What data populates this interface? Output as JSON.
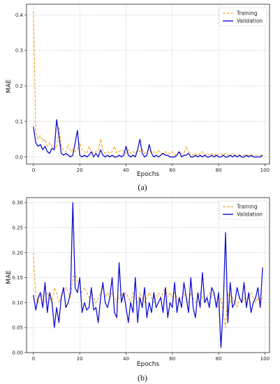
{
  "chart_data": [
    {
      "type": "line",
      "caption": "(a)",
      "xlabel": "Epochs",
      "ylabel": "MAE",
      "xlim": [
        -3,
        102
      ],
      "ylim": [
        -0.02,
        0.43
      ],
      "xticks": [
        0,
        20,
        40,
        60,
        80,
        100
      ],
      "yticks": [
        0.0,
        0.1,
        0.2,
        0.3,
        0.4
      ],
      "ytick_labels": [
        "0.0",
        "0.1",
        "0.2",
        "0.3",
        "0.4"
      ],
      "grid": true,
      "legend": "top-right",
      "x": [
        0,
        1,
        2,
        3,
        4,
        5,
        6,
        7,
        8,
        9,
        10,
        11,
        12,
        13,
        14,
        15,
        16,
        17,
        18,
        19,
        20,
        21,
        22,
        23,
        24,
        25,
        26,
        27,
        28,
        29,
        30,
        31,
        32,
        33,
        34,
        35,
        36,
        37,
        38,
        39,
        40,
        41,
        42,
        43,
        44,
        45,
        46,
        47,
        48,
        49,
        50,
        51,
        52,
        53,
        54,
        55,
        56,
        57,
        58,
        59,
        60,
        61,
        62,
        63,
        64,
        65,
        66,
        67,
        68,
        69,
        70,
        71,
        72,
        73,
        74,
        75,
        76,
        77,
        78,
        79,
        80,
        81,
        82,
        83,
        84,
        85,
        86,
        87,
        88,
        89,
        90,
        91,
        92,
        93,
        94,
        95,
        96,
        97,
        98,
        99
      ],
      "series": [
        {
          "name": "Training",
          "color": "#f5a623",
          "dash": "dashed",
          "values": [
            0.41,
            0.07,
            0.05,
            0.06,
            0.045,
            0.05,
            0.03,
            0.04,
            0.03,
            0.03,
            0.025,
            0.085,
            0.03,
            0.02,
            0.015,
            0.035,
            0.015,
            0.02,
            0.015,
            0.02,
            0.04,
            0.02,
            0.015,
            0.01,
            0.03,
            0.015,
            0.01,
            0.015,
            0.02,
            0.05,
            0.02,
            0.01,
            0.015,
            0.01,
            0.015,
            0.03,
            0.01,
            0.015,
            0.02,
            0.015,
            0.01,
            0.02,
            0.01,
            0.015,
            0.01,
            0.02,
            0.015,
            0.02,
            0.01,
            0.015,
            0.02,
            0.01,
            0.015,
            0.01,
            0.02,
            0.01,
            0.01,
            0.015,
            0.01,
            0.01,
            0.015,
            0.005,
            0.01,
            0.015,
            0.01,
            0.01,
            0.03,
            0.015,
            0.01,
            0.005,
            0.01,
            0.005,
            0.01,
            0.015,
            0.005,
            0.01,
            0.005,
            0.01,
            0.005,
            0.01,
            0.005,
            0.01,
            0.005,
            0.01,
            0.005,
            0.005,
            0.01,
            0.005,
            0.005,
            0.005,
            0.005,
            0.005,
            0.005,
            0.005,
            0.005,
            0.005,
            0.005,
            0.005,
            0.005,
            0.005
          ]
        },
        {
          "name": "Validation",
          "color": "#1010d0",
          "dash": "solid",
          "values": [
            0.085,
            0.04,
            0.03,
            0.035,
            0.02,
            0.03,
            0.015,
            0.01,
            0.025,
            0.02,
            0.105,
            0.06,
            0.01,
            0.005,
            0.01,
            0.005,
            0.0,
            0.005,
            0.04,
            0.075,
            0.005,
            0.0,
            0.005,
            0.0,
            0.005,
            0.015,
            0.0,
            0.01,
            0.0,
            0.02,
            0.005,
            0.0,
            0.005,
            0.0,
            0.005,
            0.0,
            0.0,
            0.005,
            0.0,
            0.005,
            0.03,
            0.005,
            0.0,
            0.005,
            0.0,
            0.02,
            0.05,
            0.01,
            0.0,
            0.005,
            0.035,
            0.01,
            0.0,
            0.005,
            0.0,
            0.005,
            0.01,
            0.005,
            0.005,
            0.0,
            0.0,
            0.0,
            0.005,
            0.015,
            0.0,
            0.005,
            0.005,
            0.01,
            0.0,
            0.0,
            0.005,
            0.0,
            0.005,
            0.0,
            0.005,
            0.0,
            0.0,
            0.005,
            0.0,
            0.005,
            0.0,
            0.0,
            0.005,
            0.0,
            0.0,
            0.005,
            0.0,
            0.005,
            0.0,
            0.005,
            0.0,
            0.0,
            0.005,
            0.0,
            0.005,
            0.0,
            0.0,
            0.0,
            0.0,
            0.005
          ]
        }
      ]
    },
    {
      "type": "line",
      "caption": "(b)",
      "xlabel": "Epochs",
      "ylabel": "MAE",
      "xlim": [
        -3,
        102
      ],
      "ylim": [
        0,
        0.31
      ],
      "xticks": [
        0,
        20,
        40,
        60,
        80,
        100
      ],
      "yticks": [
        0.0,
        0.05,
        0.1,
        0.15,
        0.2,
        0.25,
        0.3
      ],
      "ytick_labels": [
        "0.00",
        "0.05",
        "0.10",
        "0.15",
        "0.20",
        "0.25",
        "0.30"
      ],
      "grid": true,
      "legend": "top-right",
      "x": [
        0,
        1,
        2,
        3,
        4,
        5,
        6,
        7,
        8,
        9,
        10,
        11,
        12,
        13,
        14,
        15,
        16,
        17,
        18,
        19,
        20,
        21,
        22,
        23,
        24,
        25,
        26,
        27,
        28,
        29,
        30,
        31,
        32,
        33,
        34,
        35,
        36,
        37,
        38,
        39,
        40,
        41,
        42,
        43,
        44,
        45,
        46,
        47,
        48,
        49,
        50,
        51,
        52,
        53,
        54,
        55,
        56,
        57,
        58,
        59,
        60,
        61,
        62,
        63,
        64,
        65,
        66,
        67,
        68,
        69,
        70,
        71,
        72,
        73,
        74,
        75,
        76,
        77,
        78,
        79,
        80,
        81,
        82,
        83,
        84,
        85,
        86,
        87,
        88,
        89,
        90,
        91,
        92,
        93,
        94,
        95,
        96,
        97,
        98,
        99
      ],
      "series": [
        {
          "name": "Training",
          "color": "#f5a623",
          "dash": "dashed",
          "values": [
            0.2,
            0.11,
            0.1,
            0.12,
            0.11,
            0.1,
            0.12,
            0.11,
            0.1,
            0.13,
            0.12,
            0.1,
            0.11,
            0.12,
            0.13,
            0.12,
            0.11,
            0.15,
            0.16,
            0.14,
            0.13,
            0.12,
            0.13,
            0.12,
            0.11,
            0.12,
            0.11,
            0.1,
            0.11,
            0.12,
            0.13,
            0.11,
            0.12,
            0.11,
            0.12,
            0.11,
            0.1,
            0.11,
            0.12,
            0.11,
            0.12,
            0.11,
            0.1,
            0.12,
            0.11,
            0.1,
            0.12,
            0.11,
            0.1,
            0.11,
            0.12,
            0.11,
            0.1,
            0.11,
            0.12,
            0.11,
            0.12,
            0.13,
            0.11,
            0.12,
            0.11,
            0.12,
            0.11,
            0.1,
            0.11,
            0.12,
            0.11,
            0.1,
            0.12,
            0.11,
            0.1,
            0.11,
            0.12,
            0.11,
            0.1,
            0.11,
            0.12,
            0.11,
            0.12,
            0.1,
            0.09,
            0.11,
            0.08,
            0.05,
            0.12,
            0.1,
            0.11,
            0.1,
            0.09,
            0.11,
            0.1,
            0.11,
            0.1,
            0.11,
            0.12,
            0.11,
            0.1,
            0.11,
            0.1,
            0.11
          ]
        },
        {
          "name": "Validation",
          "color": "#1010d0",
          "dash": "solid",
          "values": [
            0.115,
            0.085,
            0.11,
            0.12,
            0.09,
            0.14,
            0.08,
            0.12,
            0.1,
            0.05,
            0.09,
            0.06,
            0.11,
            0.13,
            0.09,
            0.1,
            0.12,
            0.3,
            0.13,
            0.12,
            0.15,
            0.08,
            0.1,
            0.085,
            0.09,
            0.13,
            0.085,
            0.09,
            0.06,
            0.11,
            0.14,
            0.1,
            0.09,
            0.11,
            0.15,
            0.08,
            0.07,
            0.18,
            0.1,
            0.12,
            0.09,
            0.06,
            0.1,
            0.08,
            0.15,
            0.06,
            0.11,
            0.09,
            0.13,
            0.07,
            0.1,
            0.08,
            0.12,
            0.09,
            0.1,
            0.11,
            0.08,
            0.13,
            0.07,
            0.1,
            0.09,
            0.14,
            0.08,
            0.11,
            0.09,
            0.14,
            0.11,
            0.08,
            0.15,
            0.09,
            0.07,
            0.12,
            0.09,
            0.16,
            0.1,
            0.11,
            0.09,
            0.13,
            0.12,
            0.09,
            0.12,
            0.01,
            0.09,
            0.24,
            0.06,
            0.14,
            0.09,
            0.1,
            0.13,
            0.11,
            0.1,
            0.14,
            0.09,
            0.12,
            0.08,
            0.1,
            0.11,
            0.13,
            0.09,
            0.17
          ]
        }
      ]
    }
  ]
}
